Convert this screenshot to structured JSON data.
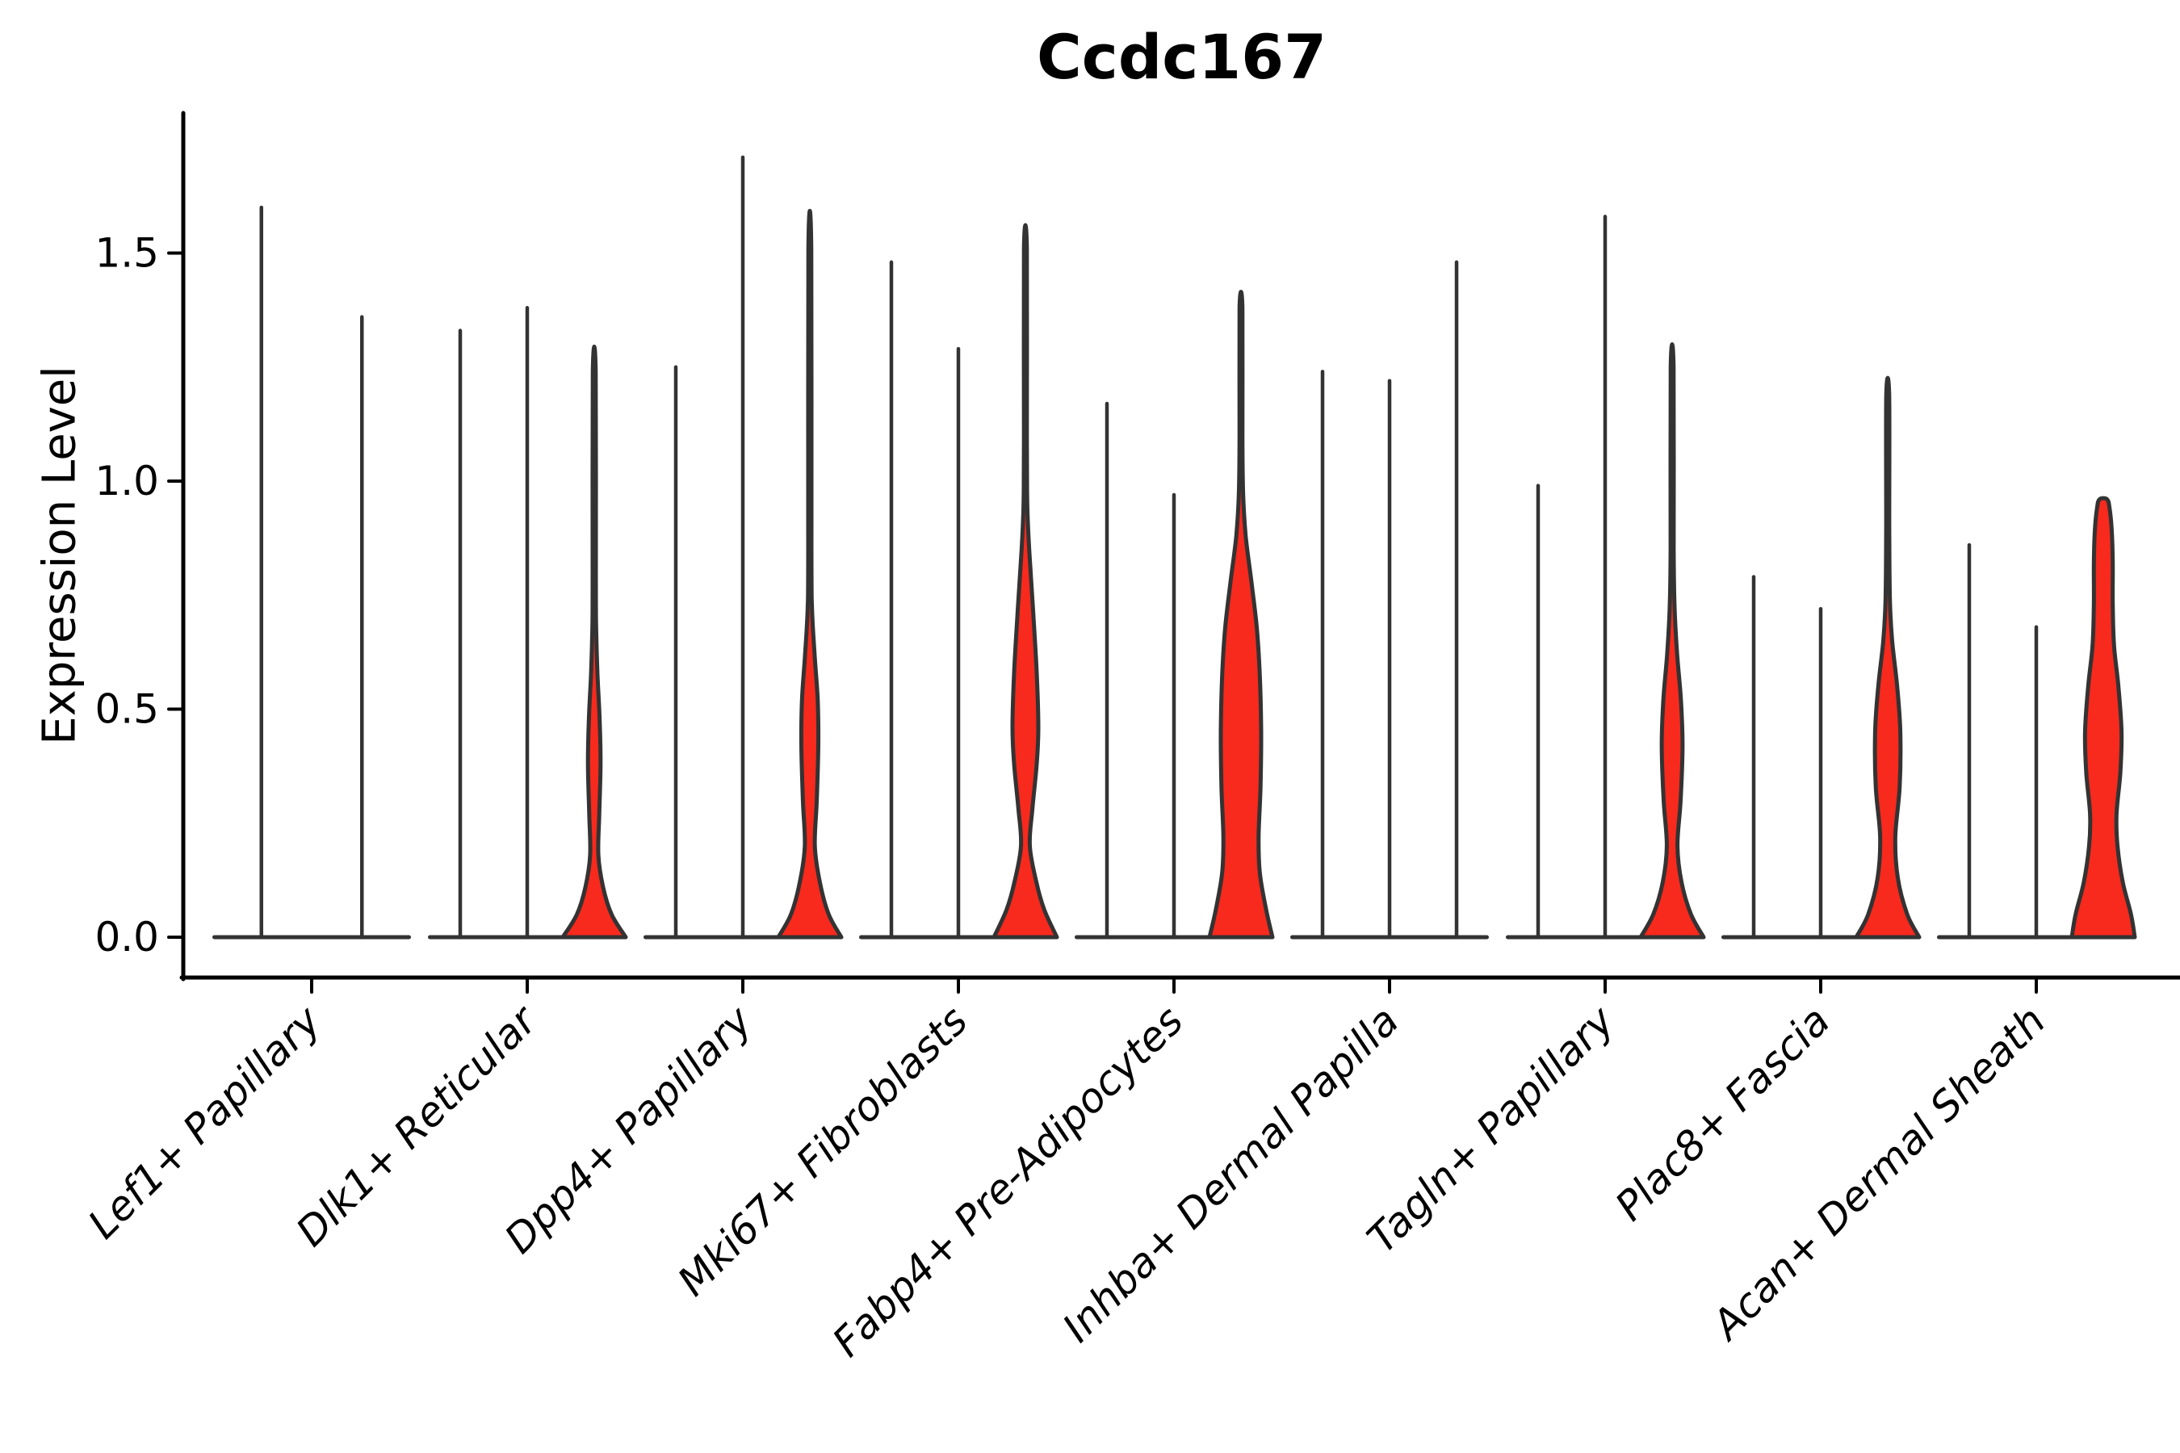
{
  "title": "Ccdc167",
  "y_axis": {
    "label": "Expression Level",
    "tick_labels": [
      "0.0",
      "0.5",
      "1.0",
      "1.5"
    ]
  },
  "colors": {
    "background": "#ffffff",
    "violin_fill": "#f8291d",
    "violin_stroke": "#333333",
    "axis": "#000000",
    "text": "#000000"
  },
  "chart_data": {
    "type": "violin",
    "title": "Ccdc167",
    "xlabel": "",
    "ylabel": "Expression Level",
    "ylim": [
      -0.09,
      1.81
    ],
    "yticks": [
      0.0,
      0.5,
      1.0,
      1.5
    ],
    "grid": false,
    "legend": null,
    "categories": [
      "Lef1+ Papillary",
      "Dlk1+ Reticular",
      "Dpp4+ Papillary",
      "Mki67+ Fibroblasts",
      "Fabp4+ Pre-Adipocytes",
      "Inhba+ Dermal Papilla",
      "Tagln+ Papillary",
      "Plac8+ Fascia",
      "Acan+ Dermal Sheath"
    ],
    "groups": [
      {
        "label": "Lef1+ Papillary",
        "violins": [
          {
            "max": 1.6,
            "filled": false
          },
          {
            "max": 1.36,
            "filled": false
          }
        ]
      },
      {
        "label": "Dlk1+ Reticular",
        "violins": [
          {
            "max": 1.33,
            "filled": false
          },
          {
            "max": 1.38,
            "filled": false
          },
          {
            "max": 1.24,
            "filled": true,
            "profile": [
              [
                0,
                1
              ],
              [
                0.05,
                0.55
              ],
              [
                0.11,
                0.28
              ],
              [
                0.18,
                0.13
              ],
              [
                0.27,
                0.16
              ],
              [
                0.38,
                0.2
              ],
              [
                0.48,
                0.17
              ],
              [
                0.58,
                0.1
              ],
              [
                0.68,
                0.06
              ],
              [
                0.8,
                0.05
              ],
              [
                1.24,
                0.045
              ]
            ]
          }
        ]
      },
      {
        "label": "Dpp4+ Papillary",
        "violins": [
          {
            "max": 1.25,
            "filled": false
          },
          {
            "max": 1.71,
            "filled": false
          },
          {
            "max": 1.51,
            "filled": true,
            "profile": [
              [
                0,
                1
              ],
              [
                0.05,
                0.6
              ],
              [
                0.12,
                0.32
              ],
              [
                0.2,
                0.16
              ],
              [
                0.3,
                0.22
              ],
              [
                0.42,
                0.27
              ],
              [
                0.52,
                0.25
              ],
              [
                0.62,
                0.15
              ],
              [
                0.72,
                0.07
              ],
              [
                0.85,
                0.05
              ],
              [
                1.51,
                0.045
              ]
            ]
          }
        ]
      },
      {
        "label": "Mki67+ Fibroblasts",
        "violins": [
          {
            "max": 1.48,
            "filled": false
          },
          {
            "max": 1.29,
            "filled": false
          },
          {
            "max": 1.51,
            "filled": true,
            "profile": [
              [
                0,
                1
              ],
              [
                0.06,
                0.6
              ],
              [
                0.12,
                0.35
              ],
              [
                0.2,
                0.14
              ],
              [
                0.28,
                0.22
              ],
              [
                0.38,
                0.36
              ],
              [
                0.46,
                0.41
              ],
              [
                0.58,
                0.36
              ],
              [
                0.72,
                0.24
              ],
              [
                0.85,
                0.12
              ],
              [
                0.95,
                0.06
              ],
              [
                1.1,
                0.045
              ],
              [
                1.51,
                0.045
              ]
            ]
          }
        ]
      },
      {
        "label": "Fabp4+ Pre-Adipocytes",
        "violins": [
          {
            "max": 1.17,
            "filled": false
          },
          {
            "max": 0.97,
            "filled": false
          },
          {
            "max": 1.38,
            "filled": true,
            "profile": [
              [
                0,
                1
              ],
              [
                0.06,
                0.8
              ],
              [
                0.14,
                0.6
              ],
              [
                0.22,
                0.56
              ],
              [
                0.33,
                0.62
              ],
              [
                0.45,
                0.64
              ],
              [
                0.57,
                0.6
              ],
              [
                0.68,
                0.5
              ],
              [
                0.78,
                0.33
              ],
              [
                0.88,
                0.15
              ],
              [
                0.97,
                0.07
              ],
              [
                1.1,
                0.045
              ],
              [
                1.38,
                0.045
              ]
            ]
          }
        ]
      },
      {
        "label": "Inhba+ Dermal Papilla",
        "violins": [
          {
            "max": 1.24,
            "filled": false
          },
          {
            "max": 1.22,
            "filled": false
          },
          {
            "max": 1.48,
            "filled": false
          }
        ]
      },
      {
        "label": "Tagln+ Papillary",
        "violins": [
          {
            "max": 0.99,
            "filled": false
          },
          {
            "max": 1.58,
            "filled": false
          },
          {
            "max": 1.25,
            "filled": true,
            "profile": [
              [
                0,
                1
              ],
              [
                0.05,
                0.6
              ],
              [
                0.12,
                0.3
              ],
              [
                0.2,
                0.17
              ],
              [
                0.3,
                0.27
              ],
              [
                0.42,
                0.33
              ],
              [
                0.52,
                0.28
              ],
              [
                0.62,
                0.16
              ],
              [
                0.72,
                0.08
              ],
              [
                0.85,
                0.05
              ],
              [
                1.25,
                0.045
              ]
            ]
          }
        ]
      },
      {
        "label": "Plac8+ Fascia",
        "violins": [
          {
            "max": 0.79,
            "filled": false
          },
          {
            "max": 0.72,
            "filled": false
          },
          {
            "max": 1.19,
            "filled": true,
            "profile": [
              [
                0,
                1
              ],
              [
                0.05,
                0.62
              ],
              [
                0.13,
                0.32
              ],
              [
                0.22,
                0.24
              ],
              [
                0.33,
                0.38
              ],
              [
                0.45,
                0.4
              ],
              [
                0.55,
                0.3
              ],
              [
                0.65,
                0.14
              ],
              [
                0.74,
                0.07
              ],
              [
                0.9,
                0.05
              ],
              [
                1.19,
                0.045
              ]
            ]
          }
        ]
      },
      {
        "label": "Acan+ Dermal Sheath",
        "violins": [
          {
            "max": 0.86,
            "filled": false
          },
          {
            "max": 0.68,
            "filled": false
          },
          {
            "max": 0.96,
            "filled": true,
            "profile": [
              [
                0,
                1
              ],
              [
                0.05,
                0.88
              ],
              [
                0.12,
                0.62
              ],
              [
                0.2,
                0.45
              ],
              [
                0.27,
                0.42
              ],
              [
                0.36,
                0.54
              ],
              [
                0.45,
                0.58
              ],
              [
                0.55,
                0.48
              ],
              [
                0.64,
                0.34
              ],
              [
                0.73,
                0.3
              ],
              [
                0.82,
                0.3
              ],
              [
                0.89,
                0.27
              ],
              [
                0.94,
                0.2
              ],
              [
                0.96,
                0.12
              ]
            ]
          }
        ]
      }
    ]
  }
}
